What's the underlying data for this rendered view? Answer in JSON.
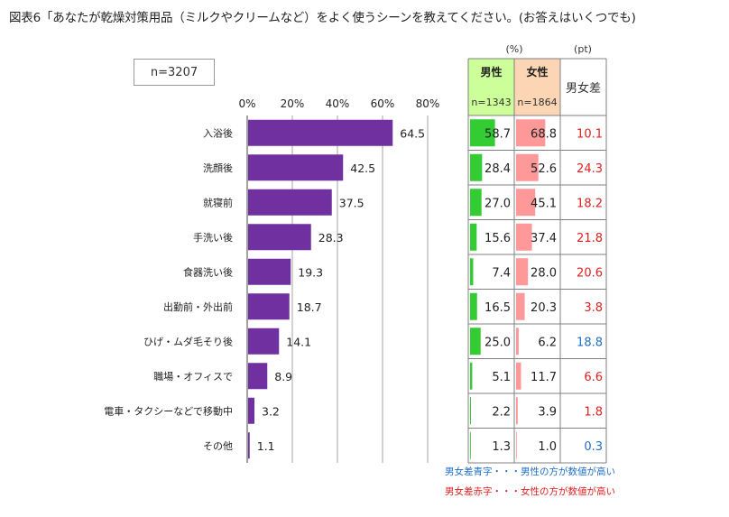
{
  "title": "図表6「あなたが乾燥対策用品（ミルクやクリームなど）をよく使うシーンを教えてください。(お答えはいくつでも)",
  "sample": "n=3207",
  "chart_data": {
    "type": "bar",
    "orientation": "horizontal",
    "unit": "%",
    "xlim": [
      0,
      80
    ],
    "x_ticks": [
      "0%",
      "20%",
      "40%",
      "60%",
      "80%"
    ],
    "bar_color": "#7030a0",
    "categories": [
      "入浴後",
      "洗顔後",
      "就寝前",
      "手洗い後",
      "食器洗い後",
      "出勤前・外出前",
      "ひげ・ムダ毛そり後",
      "職場・オフィスで",
      "電車・タクシーなどで移動中",
      "その他"
    ],
    "values": [
      64.5,
      42.5,
      37.5,
      28.3,
      19.3,
      18.7,
      14.1,
      8.9,
      3.2,
      1.1
    ],
    "value_labels": [
      "64.5",
      "42.5",
      "37.5",
      "28.3",
      "19.3",
      "18.7",
      "14.1",
      "8.9",
      "3.2",
      "1.1"
    ]
  },
  "table": {
    "unit_pct": "(%)",
    "unit_pt": "(pt)",
    "male": {
      "label": "男性",
      "n": "n=1343",
      "header_color": "#ccff99",
      "bar_color": "#33cc33",
      "values": [
        58.7,
        28.4,
        27.0,
        15.6,
        7.4,
        16.5,
        25.0,
        5.1,
        2.2,
        1.3
      ],
      "labels": [
        "58.7",
        "28.4",
        "27.0",
        "15.6",
        "7.4",
        "16.5",
        "25.0",
        "5.1",
        "2.2",
        "1.3"
      ]
    },
    "female": {
      "label": "女性",
      "n": "n=1864",
      "header_color": "#fcd5b4",
      "bar_color": "#ff9999",
      "values": [
        68.8,
        52.6,
        45.1,
        37.4,
        28.0,
        20.3,
        6.2,
        11.7,
        3.9,
        1.0
      ],
      "labels": [
        "68.8",
        "52.6",
        "45.1",
        "37.4",
        "28.0",
        "20.3",
        "6.2",
        "11.7",
        "3.9",
        "1.0"
      ]
    },
    "diff": {
      "label": "男女差",
      "labels": [
        "10.1",
        "24.3",
        "18.2",
        "21.8",
        "20.6",
        "3.8",
        "18.8",
        "6.6",
        "1.8",
        "0.3"
      ],
      "colors": [
        "#e02020",
        "#e02020",
        "#e02020",
        "#e02020",
        "#e02020",
        "#e02020",
        "#1f6fc5",
        "#e02020",
        "#e02020",
        "#1f6fc5"
      ]
    }
  },
  "notes": {
    "blue": "男女差青字・・・男性の方が数値が高い",
    "red": "男女差赤字・・・女性の方が数値が高い"
  }
}
